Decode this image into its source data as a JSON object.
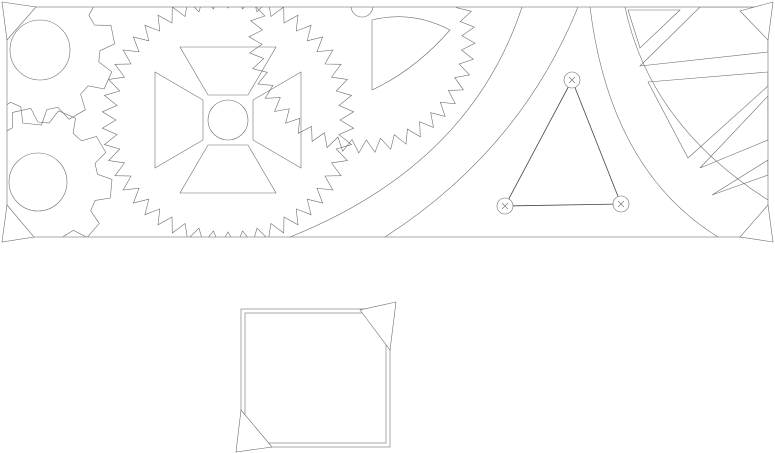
{
  "canvas": {
    "background": "#ffffff",
    "line_color": "#6e6e6e"
  },
  "panels": [
    {
      "name": "mechanical-drawing-panel",
      "corner_markers": 4
    },
    {
      "name": "square-frame-panel",
      "corner_markers": 2
    }
  ],
  "shapes": {
    "gears": 5,
    "triangle_linkage_pivots": 3
  }
}
